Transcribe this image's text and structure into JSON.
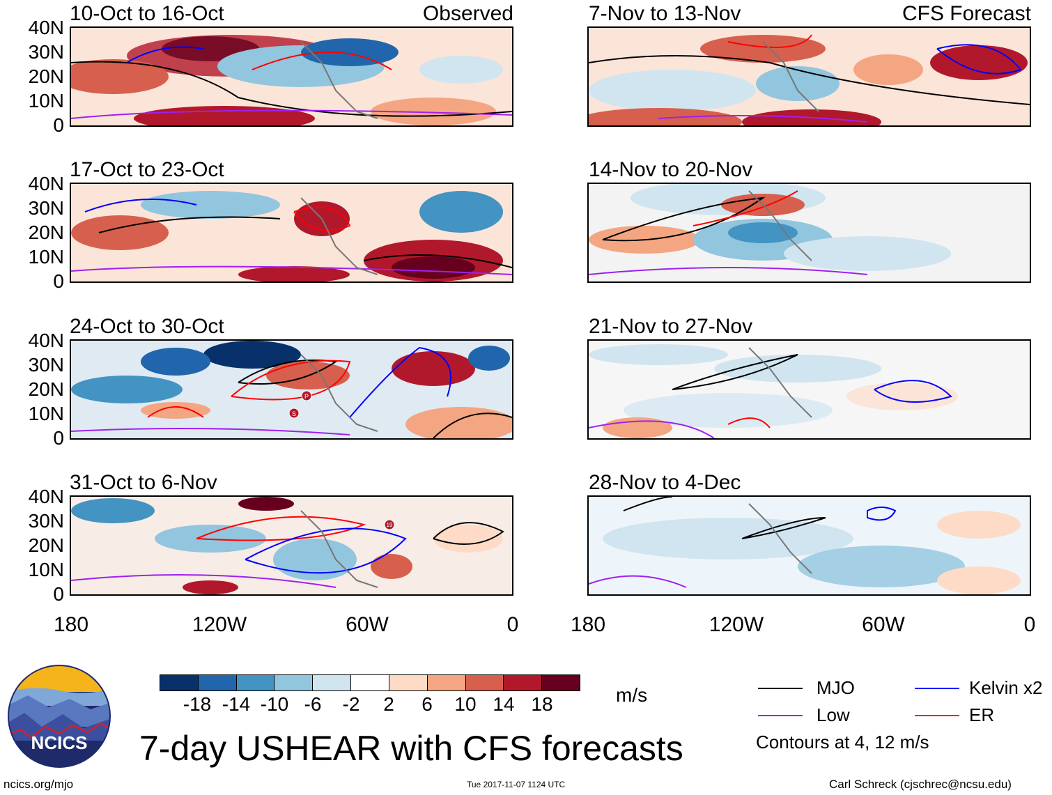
{
  "panels": [
    {
      "title": "10-Oct to 16-Oct",
      "label": "Observed"
    },
    {
      "title": "7-Nov to 13-Nov",
      "label": "CFS Forecast"
    },
    {
      "title": "17-Oct to 23-Oct",
      "label": ""
    },
    {
      "title": "14-Nov to 20-Nov",
      "label": ""
    },
    {
      "title": "24-Oct to 30-Oct",
      "label": ""
    },
    {
      "title": "21-Nov to 27-Nov",
      "label": ""
    },
    {
      "title": "31-Oct to 6-Nov",
      "label": ""
    },
    {
      "title": "28-Nov to 4-Dec",
      "label": ""
    }
  ],
  "lat_labels": [
    "40N",
    "30N",
    "20N",
    "10N",
    "0"
  ],
  "lon_labels": [
    "180",
    "120W",
    "60W",
    "0"
  ],
  "colorbar": {
    "colors": [
      "#08306b",
      "#2166ac",
      "#4393c3",
      "#92c5de",
      "#d1e5f0",
      "#ffffff",
      "#fddbc7",
      "#f4a582",
      "#d6604d",
      "#b2182b",
      "#67001f"
    ],
    "labels": [
      "-18",
      "-14",
      "-10",
      "-6",
      "-2",
      "2",
      "6",
      "10",
      "14",
      "18"
    ],
    "units": "m/s"
  },
  "legend": {
    "items": [
      {
        "name": "MJO",
        "color": "#000000"
      },
      {
        "name": "Kelvin x2",
        "color": "#0000ff"
      },
      {
        "name": "Low",
        "color": "#a020f0"
      },
      {
        "name": "ER",
        "color": "#ff0000"
      }
    ],
    "note": "Contours at 4, 12 m/s"
  },
  "logo_text": "NCICS",
  "main_title": "7-day USHEAR with CFS forecasts",
  "footer": {
    "left": "ncics.org/mjo",
    "center": "Tue 2017-11-07 1124 UTC",
    "right": "Carl Schreck (cjschrec@ncsu.edu)"
  },
  "storm_markers": [
    {
      "panel": 4,
      "label": "P"
    },
    {
      "panel": 4,
      "label": "S"
    },
    {
      "panel": 6,
      "label": "19"
    }
  ]
}
